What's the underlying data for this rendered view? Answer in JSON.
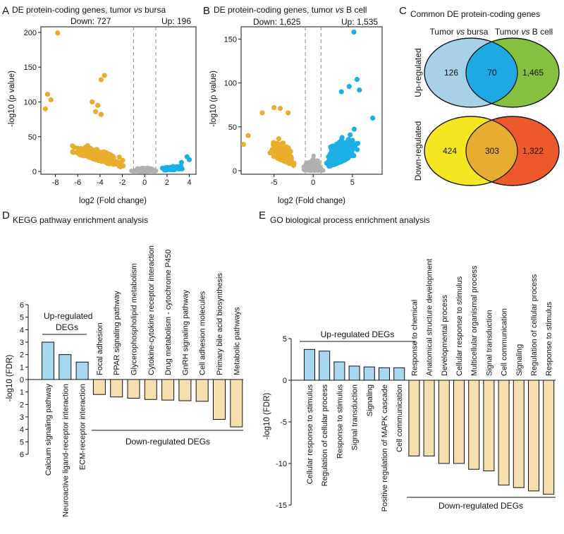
{
  "colors": {
    "up": "#1ab0e6",
    "down": "#e9ad2c",
    "ns": "#b0b0b0",
    "bar_up": "#a8d8ef",
    "bar_down": "#f6dfae",
    "venn_up_left": "#a8d0e6",
    "venn_up_right": "#86c040",
    "venn_up_overlap": "#1ea8e4",
    "venn_down_left": "#f4e722",
    "venn_down_right": "#ec5a2b",
    "venn_down_overlap": "#e8ad30"
  },
  "chart_data": [
    {
      "panel": "A",
      "type": "scatter",
      "title": "DE protein-coding genes, tumor vs bursa",
      "title_prefix": "DE protein-coding genes, tumor ",
      "title_italic": "vs",
      "title_suffix": " bursa",
      "down_label": "Down: 727",
      "up_label": "Up: 196",
      "xlabel": "log2 (Fold change)",
      "ylabel": "-log10 (p value)",
      "xlim": [
        -9.3,
        4.6
      ],
      "ylim": [
        -4,
        208
      ],
      "xticks": [
        -8,
        -6,
        -4,
        -2,
        0,
        2,
        4
      ],
      "yticks": [
        0,
        50,
        100,
        150,
        200
      ],
      "thresholds": [
        -1,
        1
      ],
      "highlights": [
        {
          "x": -7.8,
          "y": 199,
          "group": "down"
        },
        {
          "x": -3.6,
          "y": 138,
          "group": "down"
        },
        {
          "x": -3.9,
          "y": 132,
          "group": "down"
        },
        {
          "x": -8.7,
          "y": 111,
          "group": "down"
        },
        {
          "x": -8.4,
          "y": 103,
          "group": "down"
        },
        {
          "x": -4.7,
          "y": 100,
          "group": "down"
        },
        {
          "x": -4.2,
          "y": 95,
          "group": "down"
        },
        {
          "x": -8.9,
          "y": 90,
          "group": "down"
        },
        {
          "x": -4.4,
          "y": 86,
          "group": "down"
        },
        {
          "x": -3.9,
          "y": 82,
          "group": "down"
        },
        {
          "x": 3.8,
          "y": 21,
          "group": "up"
        },
        {
          "x": 4.0,
          "y": 17,
          "group": "up"
        },
        {
          "x": 3.3,
          "y": 13,
          "group": "up"
        }
      ]
    },
    {
      "panel": "B",
      "type": "scatter",
      "title": "DE protein-coding genes, tumor vs B cell",
      "title_prefix": "DE protein-coding genes, tumor ",
      "title_italic": "vs",
      "title_suffix": " B cell",
      "down_label": "Down: 1,625",
      "up_label": "Up: 1,535",
      "xlabel": "log2 (Fold change)",
      "ylabel": "-log10 (p value)",
      "xlim": [
        -9.2,
        8.8
      ],
      "ylim": [
        -4,
        164
      ],
      "xticks": [
        -5,
        0,
        5
      ],
      "yticks": [
        0,
        50,
        100,
        150
      ],
      "thresholds": [
        -1,
        1
      ],
      "highlights": [
        {
          "x": 5.2,
          "y": 158,
          "group": "up"
        },
        {
          "x": 5.6,
          "y": 104,
          "group": "up"
        },
        {
          "x": 4.6,
          "y": 96,
          "group": "up"
        },
        {
          "x": 5.9,
          "y": 92,
          "group": "up"
        },
        {
          "x": 3.6,
          "y": 90,
          "group": "up"
        },
        {
          "x": 7.6,
          "y": 60,
          "group": "up"
        },
        {
          "x": -5.0,
          "y": 72,
          "group": "down"
        },
        {
          "x": -4.2,
          "y": 71,
          "group": "down"
        },
        {
          "x": -3.2,
          "y": 66,
          "group": "down"
        },
        {
          "x": -6.5,
          "y": 66,
          "group": "down"
        },
        {
          "x": -8.3,
          "y": 40,
          "group": "down"
        },
        {
          "x": -8.9,
          "y": 30,
          "group": "down"
        }
      ]
    },
    {
      "panel": "C",
      "type": "venn",
      "title": "Common DE protein-coding genes",
      "set_left_prefix": "Tumor ",
      "set_left_italic": "vs",
      "set_left_suffix": " bursa",
      "set_right_prefix": "Tumor ",
      "set_right_italic": "vs",
      "set_right_suffix": " B cell",
      "rows": [
        {
          "label": "Up-regulated",
          "left_only": "126",
          "overlap": "70",
          "right_only": "1,465"
        },
        {
          "label": "Down-regulated",
          "left_only": "424",
          "overlap": "303",
          "right_only": "1,322"
        }
      ]
    },
    {
      "panel": "D",
      "type": "bar",
      "title": "KEGG pathway enrichment analysis",
      "ylabel": "-log10 (FDR)",
      "ylim": [
        -6,
        6
      ],
      "yticks": [
        6,
        5,
        4,
        3,
        2,
        1,
        0,
        1,
        2,
        3,
        4,
        5,
        6
      ],
      "up_group_label": "Up-regulated",
      "up_group_label2": "DEGs",
      "down_group_label": "Down-regulated DEGs",
      "up": [
        {
          "label": "Calcium signaling pathway",
          "value": 3.0
        },
        {
          "label": "Neuroactive ligand-receptor interaction",
          "value": 2.0
        },
        {
          "label": "ECM-receptor interaction",
          "value": 1.4
        }
      ],
      "down": [
        {
          "label": "Focal adhesion",
          "value": -1.2
        },
        {
          "label": "PPAR signaling pathway",
          "value": -1.4
        },
        {
          "label": "Glycerophospholipid metabolism",
          "value": -1.5
        },
        {
          "label": "Cytokine-cytokine receptor interaction",
          "value": -1.6
        },
        {
          "label": "Drug metabolism - cytochrome P450",
          "value": -1.65
        },
        {
          "label": "GnRH signaling pathway",
          "value": -1.7
        },
        {
          "label": "Cell adhesion molecules",
          "value": -1.75
        },
        {
          "label": "Primary bile acid biosynthesis",
          "value": -3.2
        },
        {
          "label": "Metabolic pathways",
          "value": -3.8
        }
      ]
    },
    {
      "panel": "E",
      "type": "bar",
      "title": "GO biological process enrichment analysis",
      "ylabel": "-log10 (FDR)",
      "ylim": [
        -15,
        5
      ],
      "yticks": [
        5,
        0,
        -5,
        -10,
        -15
      ],
      "up_group_label": "Up-regulated DEGs",
      "down_group_label": "Down-regulated DEGs",
      "up": [
        {
          "label": "Cellular response to stimulus",
          "value": 3.7
        },
        {
          "label": "Regulation of cellular process",
          "value": 3.5
        },
        {
          "label": "Response to stimulus",
          "value": 2.2
        },
        {
          "label": "Signal transduction",
          "value": 1.7
        },
        {
          "label": "Signaling",
          "value": 1.6
        },
        {
          "label": "Positive regulation of MAPK cascade",
          "value": 1.5
        },
        {
          "label": "Cell communication",
          "value": 1.5
        }
      ],
      "down": [
        {
          "label": "Response to chemical",
          "value": -9.1
        },
        {
          "label": "Anatomical structure development",
          "value": -9.1
        },
        {
          "label": "Developmental process",
          "value": -10.0
        },
        {
          "label": "Cellular response to stimulus",
          "value": -10.0
        },
        {
          "label": "Multicellular organismal process",
          "value": -10.7
        },
        {
          "label": "Signal transduction",
          "value": -10.9
        },
        {
          "label": "Cell communication",
          "value": -12.6
        },
        {
          "label": "Signaling",
          "value": -12.9
        },
        {
          "label": "Regulation of cellular process",
          "value": -13.3
        },
        {
          "label": "Response to stimulus",
          "value": -13.7
        }
      ]
    }
  ]
}
